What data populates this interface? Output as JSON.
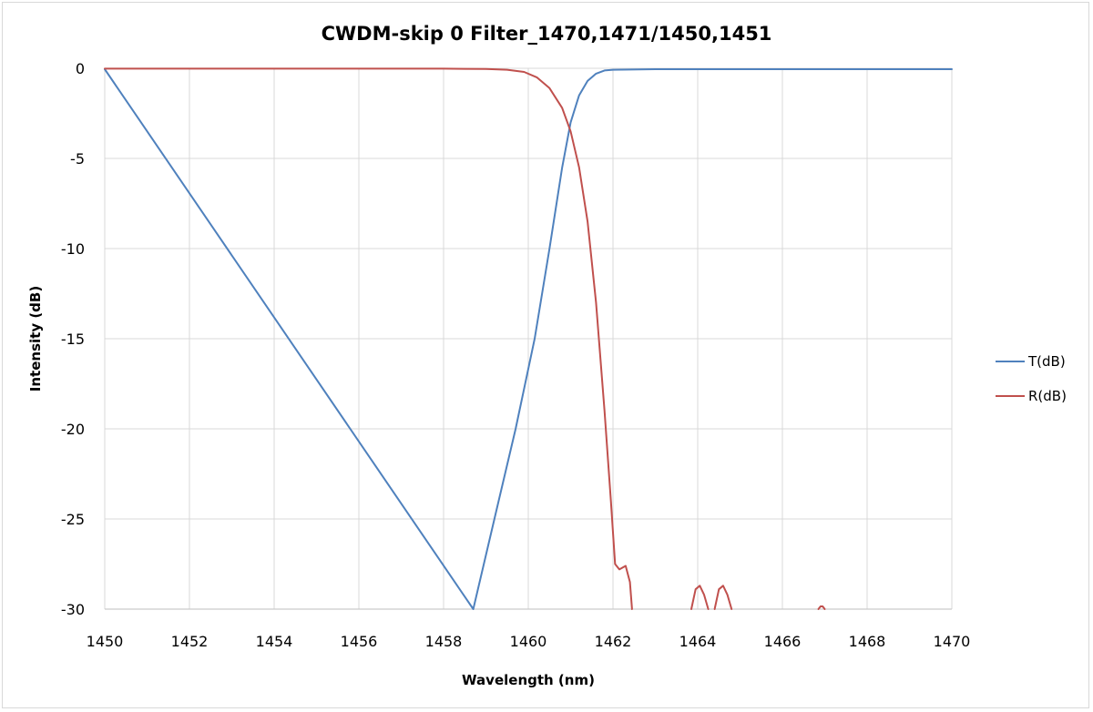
{
  "chart_data": {
    "type": "line",
    "title": "CWDM-skip 0 Filter_1470,1471/1450,1451",
    "xlabel": "Wavelength (nm)",
    "ylabel": "Intensity (dB)",
    "xlim": [
      1450,
      1470
    ],
    "ylim": [
      -30,
      0
    ],
    "x_ticks": [
      "1450",
      "1452",
      "1454",
      "1456",
      "1458",
      "1460",
      "1462",
      "1464",
      "1466",
      "1468",
      "1470"
    ],
    "y_ticks": [
      "0",
      "-5",
      "-10",
      "-15",
      "-20",
      "-25",
      "-30"
    ],
    "grid": true,
    "legend_position": "right",
    "series": [
      {
        "name": "T(dB)",
        "color": "#4f81bd",
        "points": [
          [
            1450,
            -0.05
          ],
          [
            1458.7,
            -30
          ],
          [
            1459.2,
            -25
          ],
          [
            1459.7,
            -20
          ],
          [
            1460.15,
            -15
          ],
          [
            1460.5,
            -10
          ],
          [
            1460.8,
            -5.5
          ],
          [
            1461.0,
            -3.0
          ],
          [
            1461.2,
            -1.5
          ],
          [
            1461.4,
            -0.7
          ],
          [
            1461.6,
            -0.3
          ],
          [
            1461.8,
            -0.12
          ],
          [
            1462.0,
            -0.08
          ],
          [
            1463,
            -0.05
          ],
          [
            1470,
            -0.05
          ]
        ]
      },
      {
        "name": "R(dB)",
        "color": "#c0504d",
        "segments": [
          [
            [
              1450,
              -0.02
            ],
            [
              1458,
              -0.02
            ],
            [
              1459,
              -0.04
            ],
            [
              1459.5,
              -0.08
            ],
            [
              1459.9,
              -0.2
            ],
            [
              1460.2,
              -0.5
            ],
            [
              1460.5,
              -1.1
            ],
            [
              1460.8,
              -2.2
            ],
            [
              1461.0,
              -3.5
            ],
            [
              1461.2,
              -5.5
            ],
            [
              1461.4,
              -8.5
            ],
            [
              1461.6,
              -13
            ],
            [
              1461.8,
              -19
            ],
            [
              1461.95,
              -24
            ],
            [
              1462.05,
              -27.5
            ],
            [
              1462.15,
              -27.8
            ],
            [
              1462.3,
              -27.6
            ],
            [
              1462.4,
              -28.5
            ],
            [
              1462.45,
              -30
            ]
          ],
          [
            [
              1463.85,
              -30
            ],
            [
              1463.95,
              -28.9
            ],
            [
              1464.05,
              -28.7
            ],
            [
              1464.15,
              -29.2
            ],
            [
              1464.25,
              -30
            ]
          ],
          [
            [
              1464.4,
              -30
            ],
            [
              1464.5,
              -28.9
            ],
            [
              1464.6,
              -28.7
            ],
            [
              1464.7,
              -29.2
            ],
            [
              1464.8,
              -30
            ]
          ],
          [
            [
              1466.85,
              -30
            ],
            [
              1466.9,
              -29.85
            ],
            [
              1466.95,
              -29.85
            ],
            [
              1467.0,
              -30
            ]
          ]
        ]
      }
    ]
  }
}
